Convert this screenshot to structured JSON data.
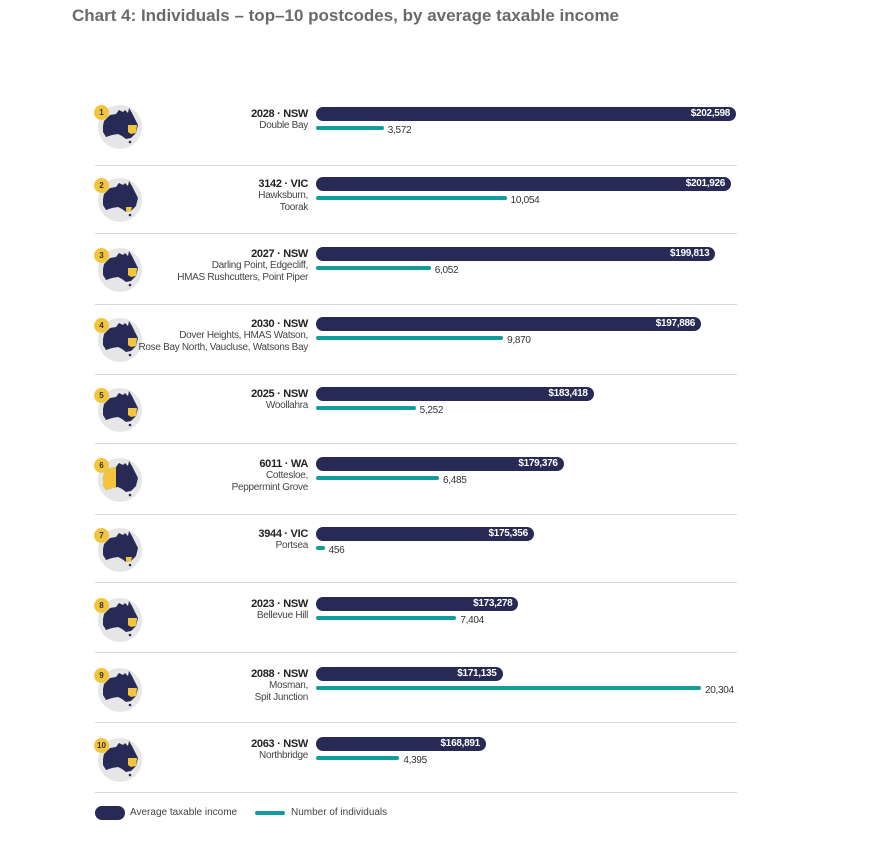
{
  "chart_data": {
    "type": "bar",
    "title": "Chart 4: Individuals – top–10 postcodes, by average taxable income",
    "legend": [
      "Average taxable income",
      "Number of individuals"
    ],
    "legend_position": "bottom-left",
    "colors": {
      "income": "#262a55",
      "count": "#129c9c",
      "highlight": "#f2c53d"
    },
    "xlim_income": [
      146000,
      202598
    ],
    "xlim_count": [
      0,
      20304
    ],
    "rows": [
      {
        "rank": "1",
        "postcode": "2028 · NSW",
        "suburbs": [
          "Double Bay"
        ],
        "income": 202598,
        "income_label": "$202,598",
        "count": 3572,
        "count_label": "3,572",
        "state": "NSW"
      },
      {
        "rank": "2",
        "postcode": "3142 · VIC",
        "suburbs": [
          "Hawksburn,",
          "Toorak"
        ],
        "income": 201926,
        "income_label": "$201,926",
        "count": 10054,
        "count_label": "10,054",
        "state": "VIC"
      },
      {
        "rank": "3",
        "postcode": "2027 · NSW",
        "suburbs": [
          "Darling Point, Edgecliff,",
          "HMAS Rushcutters, Point Piper"
        ],
        "income": 199813,
        "income_label": "$199,813",
        "count": 6052,
        "count_label": "6,052",
        "state": "NSW"
      },
      {
        "rank": "4",
        "postcode": "2030 · NSW",
        "suburbs": [
          "Dover Heights, HMAS Watson,",
          "Rose Bay North, Vaucluse, Watsons Bay"
        ],
        "income": 197886,
        "income_label": "$197,886",
        "count": 9870,
        "count_label": "9,870",
        "state": "NSW"
      },
      {
        "rank": "5",
        "postcode": "2025 · NSW",
        "suburbs": [
          "Woollahra"
        ],
        "income": 183418,
        "income_label": "$183,418",
        "count": 5252,
        "count_label": "5,252",
        "state": "NSW"
      },
      {
        "rank": "6",
        "postcode": "6011 · WA",
        "suburbs": [
          "Cottesloe,",
          "Peppermint Grove"
        ],
        "income": 179376,
        "income_label": "$179,376",
        "count": 6485,
        "count_label": "6,485",
        "state": "WA"
      },
      {
        "rank": "7",
        "postcode": "3944 · VIC",
        "suburbs": [
          "Portsea"
        ],
        "income": 175356,
        "income_label": "$175,356",
        "count": 456,
        "count_label": "456",
        "state": "VIC"
      },
      {
        "rank": "8",
        "postcode": "2023 · NSW",
        "suburbs": [
          "Bellevue Hill"
        ],
        "income": 173278,
        "income_label": "$173,278",
        "count": 7404,
        "count_label": "7,404",
        "state": "NSW"
      },
      {
        "rank": "9",
        "postcode": "2088 · NSW",
        "suburbs": [
          "Mosman,",
          "Spit Junction"
        ],
        "income": 171135,
        "income_label": "$171,135",
        "count": 20304,
        "count_label": "20,304",
        "state": "NSW"
      },
      {
        "rank": "10",
        "postcode": "2063 · NSW",
        "suburbs": [
          "Northbridge"
        ],
        "income": 168891,
        "income_label": "$168,891",
        "count": 4395,
        "count_label": "4,395",
        "state": "NSW"
      }
    ]
  }
}
